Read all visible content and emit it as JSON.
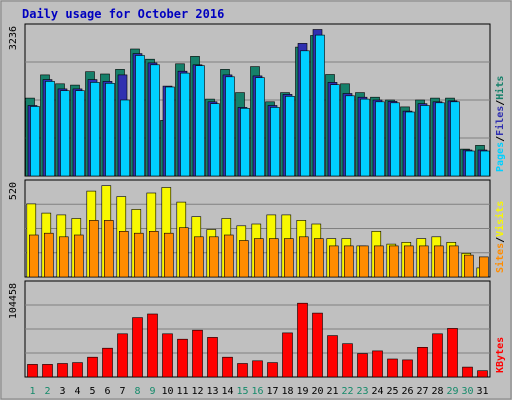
{
  "chart_data": {
    "type": "bar",
    "title": "Daily usage for October 2016",
    "categories": [
      "1",
      "2",
      "3",
      "4",
      "5",
      "6",
      "7",
      "8",
      "9",
      "10",
      "11",
      "12",
      "13",
      "14",
      "15",
      "16",
      "17",
      "18",
      "19",
      "20",
      "21",
      "22",
      "23",
      "24",
      "25",
      "26",
      "27",
      "28",
      "29",
      "30",
      "31"
    ],
    "weekend_days": [
      "1",
      "2",
      "8",
      "9",
      "15",
      "16",
      "22",
      "23",
      "29",
      "30"
    ],
    "panels": [
      {
        "name": "hits-files-pages",
        "ymax_label": "3236",
        "ymax": 3236,
        "right_label": [
          "Pages",
          "Files",
          "Hits"
        ],
        "series": [
          {
            "name": "Hits",
            "color": "#16806a",
            "values": [
              1680,
              2180,
              1990,
              1960,
              2250,
              2200,
              2300,
              2740,
              2520,
              1200,
              2420,
              2580,
              1660,
              2300,
              1800,
              2360,
              1600,
              1800,
              2780,
              3030,
              2190,
              1990,
              1800,
              1700,
              1640,
              1490,
              1640,
              1680,
              1680,
              580,
              660
            ]
          },
          {
            "name": "Files",
            "color": "#3030b0",
            "values": [
              1520,
              2080,
              1880,
              1880,
              2080,
              2040,
              2180,
              2640,
              2440,
              1940,
              2260,
              2400,
              1600,
              2180,
              1480,
              2160,
              1520,
              1760,
              2860,
              3160,
              2020,
              1780,
              1700,
              1640,
              1610,
              1400,
              1560,
              1600,
              1620,
              560,
              560
            ]
          },
          {
            "name": "Pages",
            "color": "#00d0ff",
            "values": [
              1500,
              2040,
              1840,
              1840,
              2020,
              2000,
              1640,
              2600,
              2400,
              1920,
              2220,
              2380,
              1560,
              2140,
              1460,
              2120,
              1480,
              1720,
              2700,
              3040,
              1970,
              1730,
              1660,
              1600,
              1580,
              1380,
              1520,
              1580,
              1600,
              540,
              540
            ]
          }
        ]
      },
      {
        "name": "visits-sites",
        "ymax_label": "520",
        "ymax": 520,
        "right_label": [
          "Sites",
          "Visits"
        ],
        "series": [
          {
            "name": "Visits",
            "color": "#f8f800",
            "values": [
              400,
              350,
              340,
              320,
              470,
              500,
              440,
              370,
              460,
              490,
              410,
              330,
              260,
              320,
              280,
              290,
              340,
              340,
              310,
              290,
              210,
              210,
              170,
              250,
              180,
              190,
              210,
              220,
              190,
              130,
              50
            ]
          },
          {
            "name": "Sites",
            "color": "#ff8c00",
            "values": [
              230,
              240,
              220,
              230,
              310,
              310,
              250,
              240,
              250,
              240,
              270,
              220,
              220,
              230,
              200,
              210,
              210,
              210,
              220,
              210,
              170,
              170,
              170,
              170,
              170,
              170,
              170,
              170,
              170,
              120,
              110
            ]
          }
        ]
      },
      {
        "name": "kbytes",
        "ymax_label": "104458",
        "ymax": 104458,
        "right_label": [
          "KBytes"
        ],
        "series": [
          {
            "name": "KBytes",
            "color": "#ff0000",
            "values": [
              14000,
              14000,
              15000,
              16000,
              22000,
              32000,
              48000,
              66000,
              70000,
              48000,
              42000,
              52000,
              44000,
              22000,
              15000,
              18000,
              16000,
              49000,
              82000,
              71000,
              46000,
              37000,
              26000,
              29000,
              20000,
              19000,
              33000,
              48000,
              54000,
              11000,
              7000
            ]
          }
        ]
      }
    ],
    "colors": {
      "frame_bg": "#c0c0c0",
      "plot_bg": "#c0c0c0",
      "title": "#0000c0",
      "day_label": "#000000",
      "weekend_label": "#158a6a",
      "grid": "#808080"
    }
  }
}
